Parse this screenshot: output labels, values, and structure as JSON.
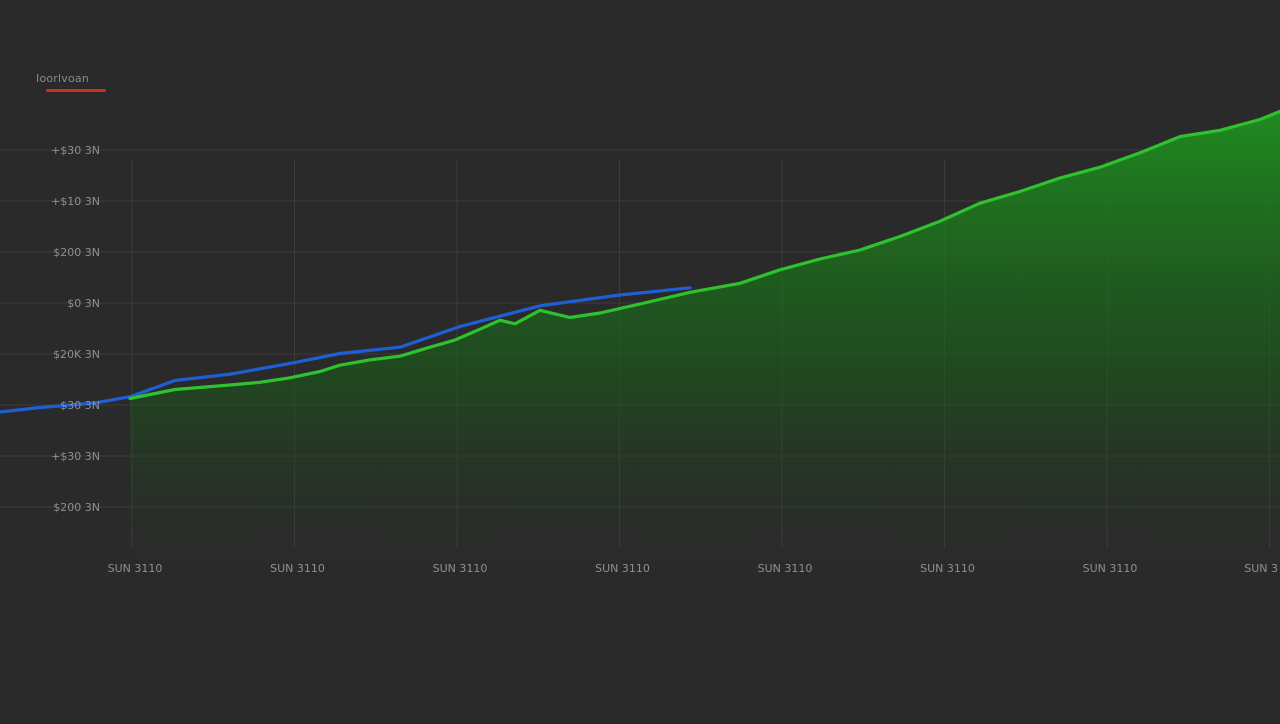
{
  "chart_data": {
    "type": "area",
    "title": "",
    "xlabel": "",
    "ylabel": "",
    "legend_position": "top-left",
    "legend_label": "Ioorlvoan",
    "grid": true,
    "y_ticks": [
      "+$30 3N",
      "+$10 3N",
      "$200 3N",
      "$0 3N",
      "$20K 3N",
      "$30 3N",
      "+$30 3N",
      "$200 3N"
    ],
    "x_ticks": [
      "SUN 3110",
      "SUN 3110",
      "SUN 3110",
      "SUN 3110",
      "SUN 3110",
      "SUN 3110",
      "SUN 3110",
      "SUN 3"
    ],
    "xlim": [
      0,
      1280
    ],
    "ylim": [
      0,
      420
    ],
    "series": [
      {
        "color": "#1f5fd6",
        "x": [
          0,
          40,
          95,
          130,
          175,
          230,
          290,
          340,
          400,
          460,
          540,
          620,
          690
        ],
        "y": [
          20,
          25,
          30,
          37,
          55,
          62,
          74,
          85,
          92,
          115,
          138,
          150,
          158
        ]
      },
      {
        "color": "#2fc22f",
        "fill": true,
        "x": [
          130,
          175,
          230,
          260,
          290,
          320,
          340,
          370,
          400,
          430,
          455,
          480,
          500,
          515,
          540,
          570,
          600,
          640,
          690,
          740,
          780,
          820,
          860,
          900,
          940,
          980,
          1020,
          1060,
          1100,
          1140,
          1180,
          1220,
          1260,
          1280
        ],
        "y": [
          35,
          45,
          50,
          53,
          58,
          65,
          72,
          78,
          82,
          92,
          100,
          112,
          122,
          118,
          133,
          125,
          130,
          140,
          153,
          163,
          178,
          190,
          200,
          215,
          232,
          252,
          265,
          280,
          292,
          308,
          326,
          333,
          345,
          354
        ]
      }
    ]
  }
}
